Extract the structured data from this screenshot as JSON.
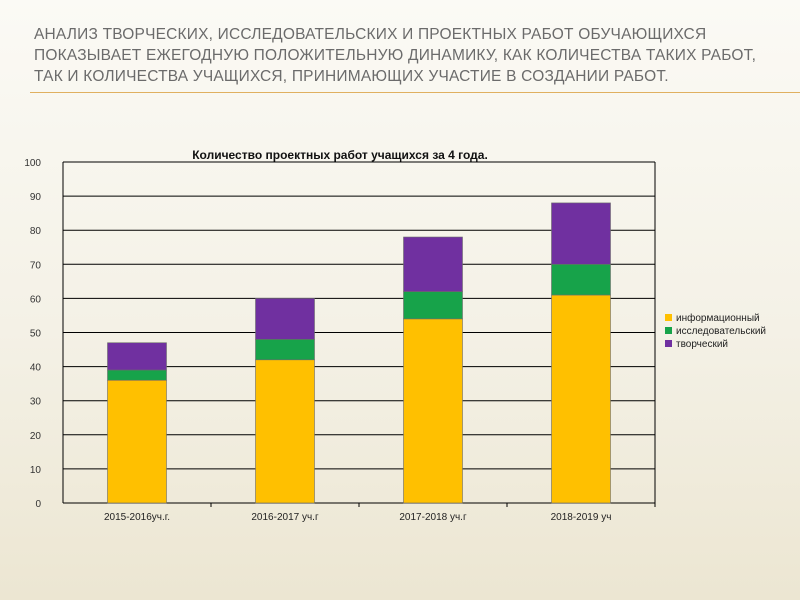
{
  "slide": {
    "title": "Анализ творческих, исследовательских и проектных работ обучающихся показывает ежегодную положительную динамику, как количества таких работ, так и количества учащихся, принимающих участие в создании работ."
  },
  "colors": {
    "информационный": "#ffc000",
    "исследовательский": "#17a34a",
    "творческий": "#7030a0",
    "grid": "#000000",
    "title_rule": "#e0b060"
  },
  "chart_data": {
    "type": "bar",
    "stacked": true,
    "title": "Количество проектных работ учащихся за 4 года.",
    "xlabel": "",
    "ylabel": "",
    "categories": [
      "2015-2016уч.г.",
      "2016-2017 уч.г",
      "2017-2018 уч.г",
      "2018-2019 уч"
    ],
    "ylim": [
      0,
      100
    ],
    "yticks": [
      0,
      10,
      20,
      30,
      40,
      50,
      60,
      70,
      80,
      90,
      100
    ],
    "grid": true,
    "legend_position": "right",
    "series": [
      {
        "name": "информационный",
        "color": "#ffc000",
        "values": [
          36,
          42,
          54,
          61
        ]
      },
      {
        "name": "исследовательский",
        "color": "#17a34a",
        "values": [
          3,
          6,
          8,
          9
        ]
      },
      {
        "name": "творческий",
        "color": "#7030a0",
        "values": [
          8,
          12,
          16,
          18
        ]
      }
    ]
  }
}
